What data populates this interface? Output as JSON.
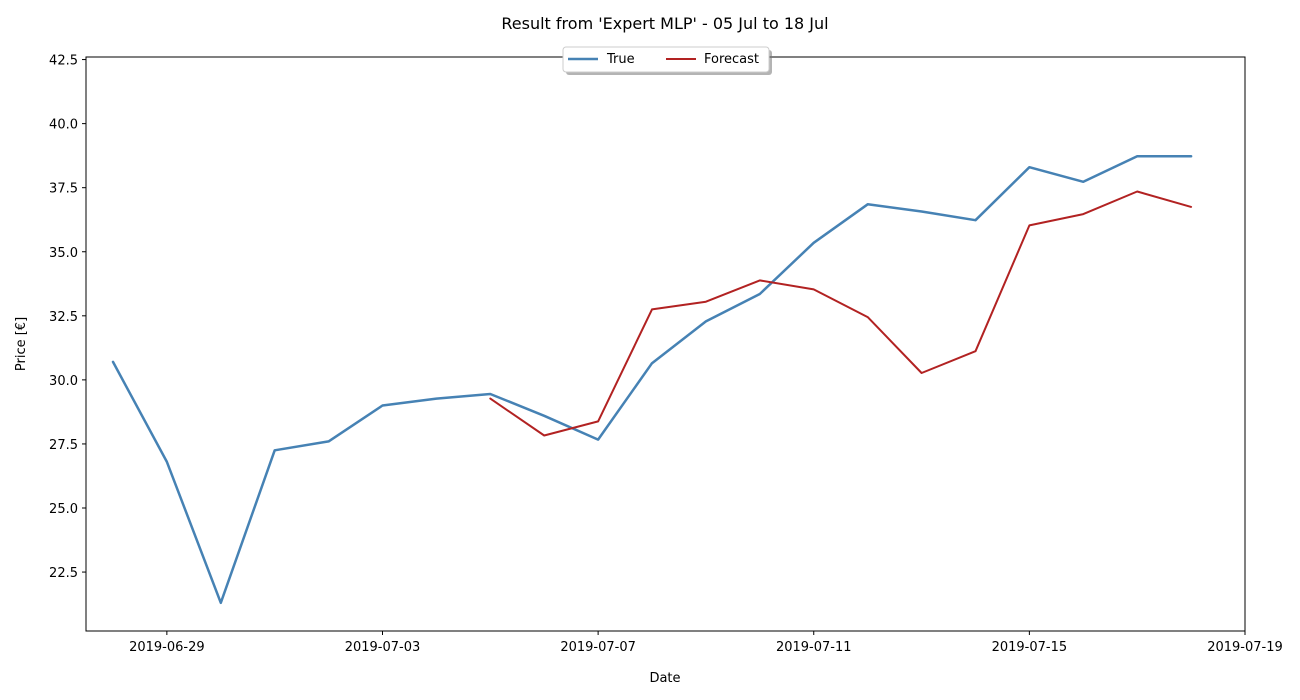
{
  "chart_data": {
    "type": "line",
    "title": "Result from 'Expert MLP' - 05 Jul to 18 Jul",
    "xlabel": "Date",
    "ylabel": "Price [€]",
    "xlim": [
      "2019-06-27T12:00",
      "2019-07-19"
    ],
    "ylim": [
      20.2,
      42.6
    ],
    "x_ticks": [
      "2019-06-29",
      "2019-07-03",
      "2019-07-07",
      "2019-07-11",
      "2019-07-15",
      "2019-07-19"
    ],
    "y_ticks": [
      22.5,
      25.0,
      27.5,
      30.0,
      32.5,
      35.0,
      37.5,
      40.0,
      42.5
    ],
    "grid": false,
    "legend_position": "top-center",
    "series": [
      {
        "name": "True",
        "color": "#4682b4",
        "x": [
          "2019-06-28",
          "2019-06-29",
          "2019-06-30",
          "2019-07-01",
          "2019-07-02",
          "2019-07-03",
          "2019-07-04",
          "2019-07-05",
          "2019-07-06",
          "2019-07-07",
          "2019-07-08",
          "2019-07-09",
          "2019-07-10",
          "2019-07-11",
          "2019-07-12",
          "2019-07-13",
          "2019-07-14",
          "2019-07-15",
          "2019-07-16",
          "2019-07-17",
          "2019-07-18"
        ],
        "values": [
          30.7,
          26.8,
          21.3,
          27.25,
          27.6,
          29.0,
          29.27,
          29.45,
          28.6,
          27.67,
          30.65,
          32.28,
          33.35,
          35.35,
          36.85,
          36.57,
          36.23,
          38.3,
          37.73,
          38.73,
          38.73
        ]
      },
      {
        "name": "Forecast",
        "color": "#b22222",
        "x": [
          "2019-07-05",
          "2019-07-06",
          "2019-07-07",
          "2019-07-08",
          "2019-07-09",
          "2019-07-10",
          "2019-07-11",
          "2019-07-12",
          "2019-07-13",
          "2019-07-14",
          "2019-07-15",
          "2019-07-16",
          "2019-07-17",
          "2019-07-18"
        ],
        "values": [
          29.27,
          27.83,
          28.38,
          32.75,
          33.05,
          33.88,
          33.53,
          32.45,
          30.27,
          31.12,
          36.03,
          36.47,
          37.35,
          36.75
        ]
      }
    ]
  }
}
